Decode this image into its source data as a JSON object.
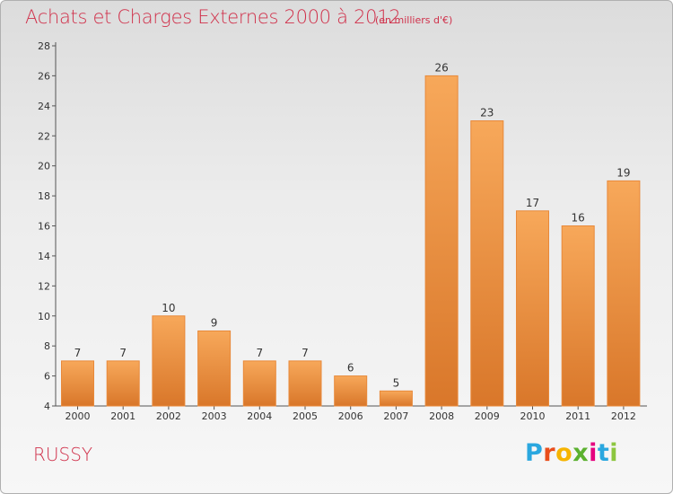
{
  "header": {
    "title": "Achats et Charges Externes 2000 à 2012",
    "subtitle": "(en milliers d'€)"
  },
  "footer": {
    "commune": "RUSSY",
    "logo_letters": [
      "P",
      "r",
      "o",
      "x",
      "i",
      "t",
      "i"
    ],
    "logo_colors": [
      "#2aa7df",
      "#e94e1b",
      "#f6b400",
      "#5bb12f",
      "#e5007e",
      "#2aa7df",
      "#8cc63f"
    ]
  },
  "colors": {
    "title": "#d0304a",
    "bar_light": "#f7a85a",
    "bar_dark": "#d9772a",
    "bar_stroke": "#e8893a"
  },
  "chart_data": {
    "type": "bar",
    "title": "Achats et Charges Externes 2000 à 2012",
    "subtitle": "(en milliers d'€)",
    "categories": [
      "2000",
      "2001",
      "2002",
      "2003",
      "2004",
      "2005",
      "2006",
      "2007",
      "2008",
      "2009",
      "2010",
      "2011",
      "2012"
    ],
    "values": [
      7,
      7,
      10,
      9,
      7,
      7,
      6,
      5,
      26,
      23,
      17,
      16,
      19
    ],
    "ylim": [
      4,
      28
    ],
    "yticks": [
      4,
      6,
      8,
      10,
      12,
      14,
      16,
      18,
      20,
      22,
      24,
      26,
      28
    ],
    "grid": false,
    "xlabel": "",
    "ylabel": ""
  }
}
